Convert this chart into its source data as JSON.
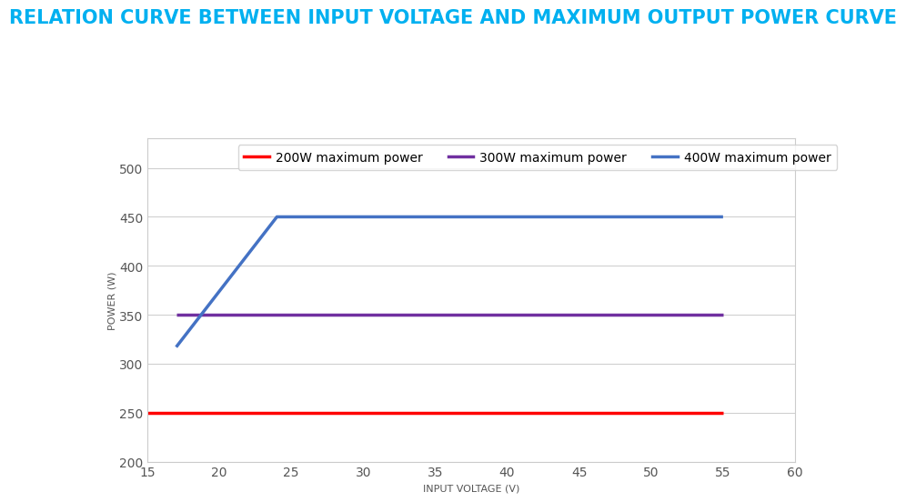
{
  "title": "RELATION CURVE BETWEEN INPUT VOLTAGE AND MAXIMUM OUTPUT POWER CURVE",
  "title_color": "#00B0F0",
  "xlabel": "INPUT VOLTAGE (V)",
  "ylabel": "POWER (W)",
  "xlim": [
    15,
    60
  ],
  "ylim": [
    200,
    530
  ],
  "xticks": [
    15,
    20,
    25,
    30,
    35,
    40,
    45,
    50,
    55,
    60
  ],
  "yticks": [
    200,
    250,
    300,
    350,
    400,
    450,
    500
  ],
  "series": [
    {
      "label": "200W maximum power",
      "color": "#FF0000",
      "x": [
        15,
        55
      ],
      "y": [
        250,
        250
      ],
      "linewidth": 2.5
    },
    {
      "label": "300W maximum power",
      "color": "#7030A0",
      "x": [
        17,
        24,
        55
      ],
      "y": [
        350,
        350,
        350
      ],
      "linewidth": 2.5
    },
    {
      "label": "400W maximum power",
      "color": "#4472C4",
      "x": [
        17,
        24,
        55
      ],
      "y": [
        317,
        450,
        450
      ],
      "linewidth": 2.5
    }
  ],
  "background_color": "#FFFFFF",
  "grid_color": "#D0D0D0",
  "title_fontsize": 15,
  "axis_label_fontsize": 8,
  "tick_fontsize": 10,
  "legend_fontsize": 10
}
